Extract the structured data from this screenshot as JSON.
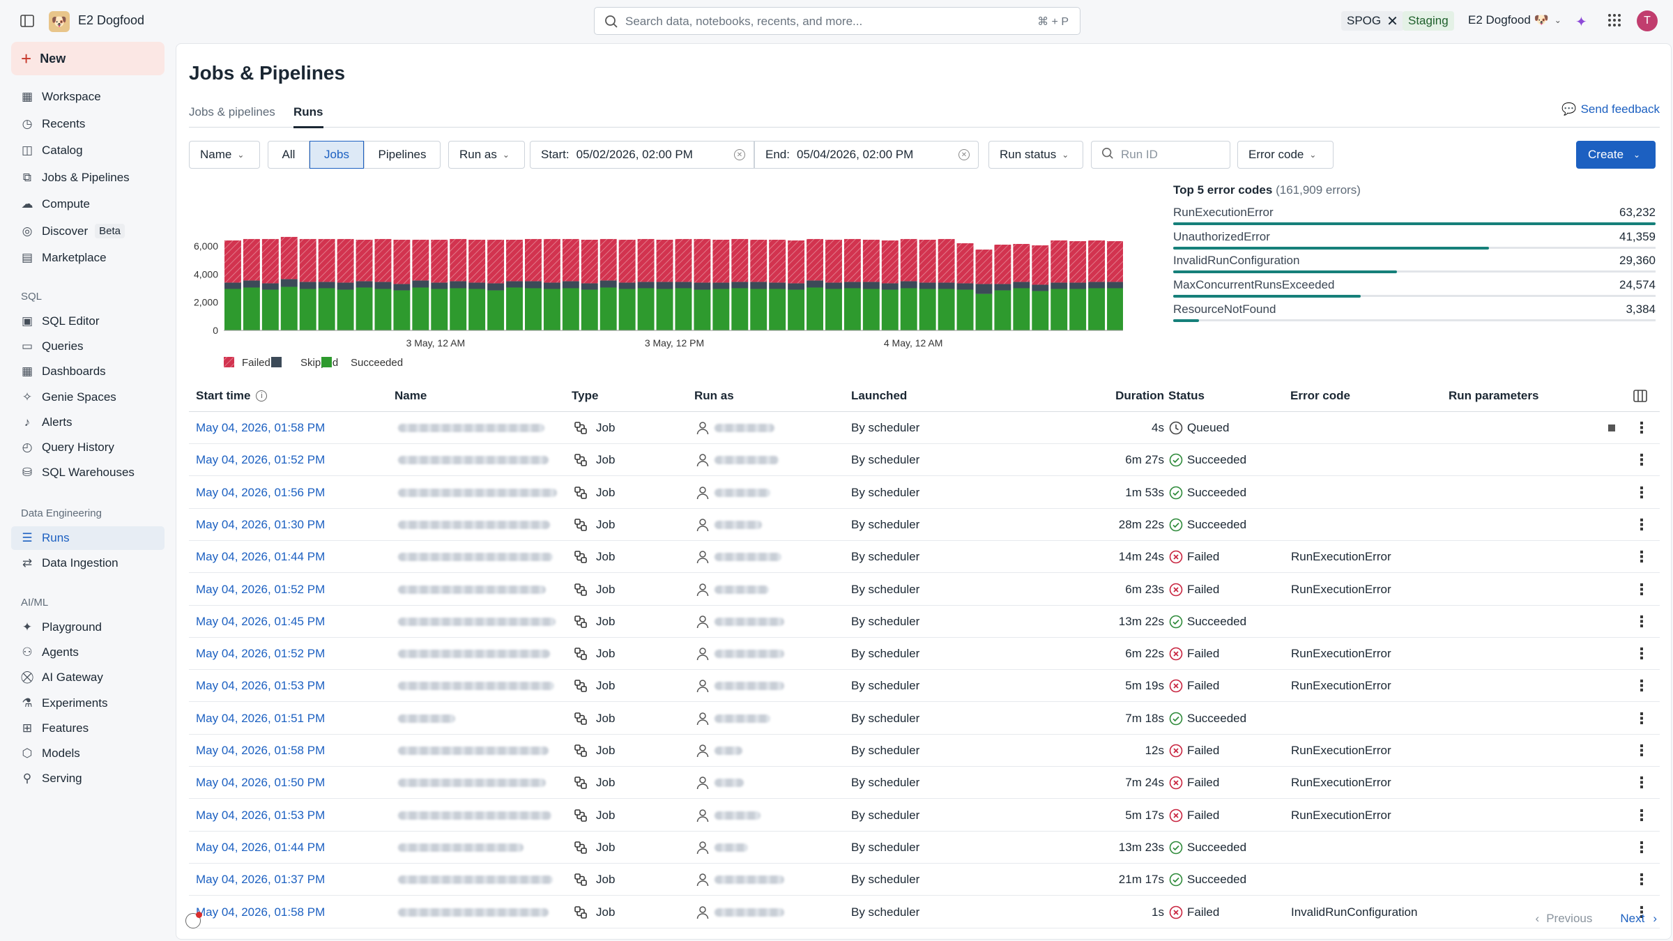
{
  "app": {
    "workspace_name": "E2 Dogfood",
    "search_placeholder": "Search data, notebooks, recents, and more...",
    "search_shortcut": "⌘ + P",
    "spog_tag": "SPOG",
    "env_tag": "Staging",
    "workspace_switcher": "E2 Dogfood 🐶",
    "avatar_letter": "T"
  },
  "sidebar": {
    "new_label": "New",
    "items": [
      {
        "label": "Workspace",
        "icon": "workspace-icon"
      },
      {
        "label": "Recents",
        "icon": "clock-icon"
      },
      {
        "label": "Catalog",
        "icon": "catalog-icon"
      },
      {
        "label": "Jobs & Pipelines",
        "icon": "workflow-icon"
      },
      {
        "label": "Compute",
        "icon": "cloud-icon"
      },
      {
        "label": "Discover",
        "icon": "compass-icon",
        "badge": "Beta"
      },
      {
        "label": "Marketplace",
        "icon": "shop-icon"
      }
    ],
    "sql_section": "SQL",
    "sql_items": [
      {
        "label": "SQL Editor",
        "icon": "sql-editor-icon"
      },
      {
        "label": "Queries",
        "icon": "queries-icon"
      },
      {
        "label": "Dashboards",
        "icon": "dashboard-icon"
      },
      {
        "label": "Genie Spaces",
        "icon": "genie-icon"
      },
      {
        "label": "Alerts",
        "icon": "bell-icon"
      },
      {
        "label": "Query History",
        "icon": "history-icon"
      },
      {
        "label": "SQL Warehouses",
        "icon": "warehouse-icon"
      }
    ],
    "de_section": "Data Engineering",
    "de_items": [
      {
        "label": "Runs",
        "icon": "runs-icon",
        "active": true
      },
      {
        "label": "Data Ingestion",
        "icon": "ingestion-icon"
      }
    ],
    "ai_section": "AI/ML",
    "ai_items": [
      {
        "label": "Playground",
        "icon": "playground-icon"
      },
      {
        "label": "Agents",
        "icon": "agents-icon"
      },
      {
        "label": "AI Gateway",
        "icon": "gateway-icon"
      },
      {
        "label": "Experiments",
        "icon": "experiments-icon"
      },
      {
        "label": "Features",
        "icon": "features-icon"
      },
      {
        "label": "Models",
        "icon": "models-icon"
      },
      {
        "label": "Serving",
        "icon": "serving-icon"
      }
    ]
  },
  "page": {
    "title": "Jobs & Pipelines",
    "tabs": [
      "Jobs & pipelines",
      "Runs"
    ],
    "active_tab": "Runs",
    "feedback": "Send feedback"
  },
  "filters": {
    "name": "Name",
    "seg_all": "All",
    "seg_jobs": "Jobs",
    "seg_pipelines": "Pipelines",
    "run_as": "Run as",
    "start_label": "Start:",
    "start_value": "05/02/2026, 02:00 PM",
    "end_label": "End:",
    "end_value": "05/04/2026, 02:00 PM",
    "run_status": "Run status",
    "run_id_placeholder": "Run ID",
    "error_code": "Error code",
    "create": "Create"
  },
  "chart_data": {
    "type": "bar",
    "stacked": true,
    "yticks": [
      "6,000",
      "4,000",
      "2,000",
      "0"
    ],
    "ylim": [
      0,
      6600
    ],
    "xticks": [
      "3 May, 12 AM",
      "3 May, 12 PM",
      "4 May, 12 AM"
    ],
    "legend": [
      "Failed",
      "Skipped",
      "Succeeded"
    ],
    "colors": {
      "Failed": "#d2334f",
      "Skipped": "#3c4a58",
      "Succeeded": "#2e9a2e"
    },
    "series": [
      {
        "name": "Succeeded",
        "values": [
          2950,
          3050,
          2900,
          3100,
          2950,
          3000,
          2900,
          3050,
          2950,
          2850,
          3050,
          2950,
          3000,
          2950,
          2850,
          3050,
          3000,
          2950,
          3000,
          2900,
          3050,
          2950,
          3000,
          2950,
          3000,
          2900,
          2950,
          3000,
          2950,
          2950,
          2900,
          3050,
          2950,
          3000,
          2950,
          2900,
          3000,
          2950,
          2950,
          2900,
          2600,
          2850,
          3000,
          2800,
          2950,
          2950,
          3000,
          3000
        ]
      },
      {
        "name": "Skipped",
        "values": [
          450,
          500,
          450,
          550,
          500,
          450,
          500,
          450,
          500,
          450,
          500,
          450,
          500,
          450,
          500,
          450,
          500,
          450,
          500,
          450,
          500,
          450,
          450,
          500,
          450,
          500,
          450,
          450,
          500,
          450,
          450,
          500,
          450,
          450,
          500,
          450,
          500,
          450,
          450,
          450,
          700,
          450,
          450,
          450,
          450,
          450,
          450,
          450
        ]
      },
      {
        "name": "Failed",
        "values": [
          3000,
          2950,
          3150,
          3000,
          3050,
          3050,
          3100,
          2950,
          3050,
          3150,
          2900,
          3050,
          3000,
          3050,
          3100,
          2950,
          3000,
          3100,
          3000,
          3100,
          2950,
          3050,
          3050,
          3000,
          3050,
          3100,
          3050,
          3050,
          3000,
          3050,
          3050,
          2950,
          3050,
          3050,
          3000,
          3050,
          3000,
          3050,
          3100,
          2850,
          2450,
          2800,
          2700,
          2800,
          3000,
          2950,
          2950,
          2900
        ]
      }
    ]
  },
  "errors": {
    "title": "Top 5 error codes",
    "subtitle": "(161,909 errors)",
    "items": [
      {
        "name": "RunExecutionError",
        "count": "63,232",
        "value": 63232
      },
      {
        "name": "UnauthorizedError",
        "count": "41,359",
        "value": 41359
      },
      {
        "name": "InvalidRunConfiguration",
        "count": "29,360",
        "value": 29360
      },
      {
        "name": "MaxConcurrentRunsExceeded",
        "count": "24,574",
        "value": 24574
      },
      {
        "name": "ResourceNotFound",
        "count": "3,384",
        "value": 3384
      }
    ]
  },
  "table": {
    "columns": [
      "Start time",
      "Name",
      "Type",
      "Run as",
      "Launched",
      "Duration",
      "Status",
      "Error code",
      "Run parameters"
    ],
    "rows": [
      {
        "start": "May 04, 2026, 01:58 PM",
        "type": "Job",
        "launched": "By scheduler",
        "duration": "4s",
        "status": "Queued",
        "error": ""
      },
      {
        "start": "May 04, 2026, 01:52 PM",
        "type": "Job",
        "launched": "By scheduler",
        "duration": "6m 27s",
        "status": "Succeeded",
        "error": ""
      },
      {
        "start": "May 04, 2026, 01:56 PM",
        "type": "Job",
        "launched": "By scheduler",
        "duration": "1m 53s",
        "status": "Succeeded",
        "error": ""
      },
      {
        "start": "May 04, 2026, 01:30 PM",
        "type": "Job",
        "launched": "By scheduler",
        "duration": "28m 22s",
        "status": "Succeeded",
        "error": ""
      },
      {
        "start": "May 04, 2026, 01:44 PM",
        "type": "Job",
        "launched": "By scheduler",
        "duration": "14m 24s",
        "status": "Failed",
        "error": "RunExecutionError"
      },
      {
        "start": "May 04, 2026, 01:52 PM",
        "type": "Job",
        "launched": "By scheduler",
        "duration": "6m 23s",
        "status": "Failed",
        "error": "RunExecutionError"
      },
      {
        "start": "May 04, 2026, 01:45 PM",
        "type": "Job",
        "launched": "By scheduler",
        "duration": "13m 22s",
        "status": "Succeeded",
        "error": ""
      },
      {
        "start": "May 04, 2026, 01:52 PM",
        "type": "Job",
        "launched": "By scheduler",
        "duration": "6m 22s",
        "status": "Failed",
        "error": "RunExecutionError"
      },
      {
        "start": "May 04, 2026, 01:53 PM",
        "type": "Job",
        "launched": "By scheduler",
        "duration": "5m 19s",
        "status": "Failed",
        "error": "RunExecutionError"
      },
      {
        "start": "May 04, 2026, 01:51 PM",
        "type": "Job",
        "launched": "By scheduler",
        "duration": "7m 18s",
        "status": "Succeeded",
        "error": ""
      },
      {
        "start": "May 04, 2026, 01:58 PM",
        "type": "Job",
        "launched": "By scheduler",
        "duration": "12s",
        "status": "Failed",
        "error": "RunExecutionError"
      },
      {
        "start": "May 04, 2026, 01:50 PM",
        "type": "Job",
        "launched": "By scheduler",
        "duration": "7m 24s",
        "status": "Failed",
        "error": "RunExecutionError"
      },
      {
        "start": "May 04, 2026, 01:53 PM",
        "type": "Job",
        "launched": "By scheduler",
        "duration": "5m 17s",
        "status": "Failed",
        "error": "RunExecutionError"
      },
      {
        "start": "May 04, 2026, 01:44 PM",
        "type": "Job",
        "launched": "By scheduler",
        "duration": "13m 23s",
        "status": "Succeeded",
        "error": ""
      },
      {
        "start": "May 04, 2026, 01:37 PM",
        "type": "Job",
        "launched": "By scheduler",
        "duration": "21m 17s",
        "status": "Succeeded",
        "error": ""
      },
      {
        "start": "May 04, 2026, 01:58 PM",
        "type": "Job",
        "launched": "By scheduler",
        "duration": "1s",
        "status": "Failed",
        "error": "InvalidRunConfiguration"
      }
    ]
  },
  "pagination": {
    "previous": "Previous",
    "next": "Next"
  }
}
